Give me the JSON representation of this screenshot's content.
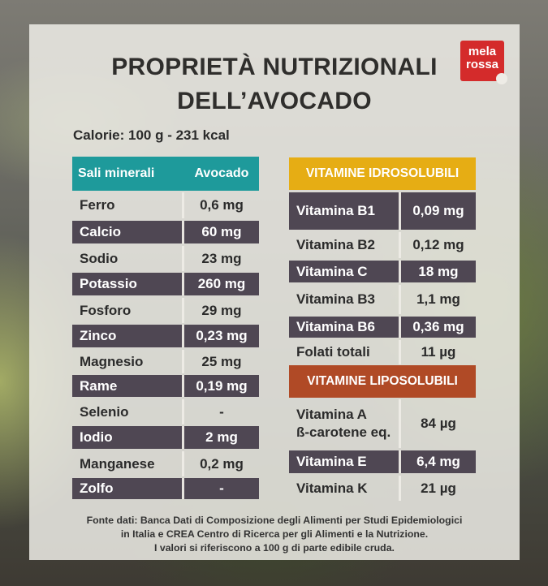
{
  "title": {
    "line1": "PROPRIETÀ NUTRIZIONALI",
    "line2": "DELL’AVOCADO"
  },
  "logo": {
    "line1": "mela",
    "line2": "rossa"
  },
  "calories": "Calorie: 100 g - 231 kcal",
  "minerals": {
    "header_name": "Sali minerali",
    "header_value": "Avocado",
    "header_color": "#1e9a9b",
    "rows": [
      {
        "name": "Ferro",
        "value": "0,6 mg"
      },
      {
        "name": "Calcio",
        "value": "60 mg"
      },
      {
        "name": "Sodio",
        "value": "23 mg"
      },
      {
        "name": "Potassio",
        "value": "260 mg"
      },
      {
        "name": "Fosforo",
        "value": "29 mg"
      },
      {
        "name": "Zinco",
        "value": "0,23 mg"
      },
      {
        "name": "Magnesio",
        "value": "25 mg"
      },
      {
        "name": "Rame",
        "value": "0,19 mg"
      },
      {
        "name": "Selenio",
        "value": "-"
      },
      {
        "name": "Iodio",
        "value": "2 mg"
      },
      {
        "name": "Manganese",
        "value": "0,2 mg"
      },
      {
        "name": "Zolfo",
        "value": "-"
      }
    ]
  },
  "water_soluble": {
    "header": "VITAMINE IDROSOLUBILI",
    "header_color": "#e6ad14",
    "rows": [
      {
        "name": "Vitamina B1",
        "value": "0,09 mg"
      },
      {
        "name": "Vitamina B2",
        "value": "0,12 mg"
      },
      {
        "name": "Vitamina C",
        "value": "18 mg"
      },
      {
        "name": "Vitamina B3",
        "value": "1,1 mg"
      },
      {
        "name": "Vitamina B6",
        "value": "0,36 mg"
      },
      {
        "name": "Folati totali",
        "value": "11 µg"
      }
    ]
  },
  "fat_soluble": {
    "header": "VITAMINE LIPOSOLUBILI",
    "header_color": "#b04a26",
    "rows": [
      {
        "name": "Vitamina A",
        "name2": "ß-carotene eq.",
        "value": "84 µg"
      },
      {
        "name": "Vitamina E",
        "value": "6,4 mg"
      },
      {
        "name": "Vitamina K",
        "value": "21 µg"
      }
    ]
  },
  "source": {
    "line1": "Fonte dati: Banca Dati di Composizione degli Alimenti per Studi Epidemiologici",
    "line2": "in Italia e CREA Centro di Ricerca per gli Alimenti e la Nutrizione.",
    "line3": "I valori si riferiscono a 100 g di parte edibile cruda."
  }
}
